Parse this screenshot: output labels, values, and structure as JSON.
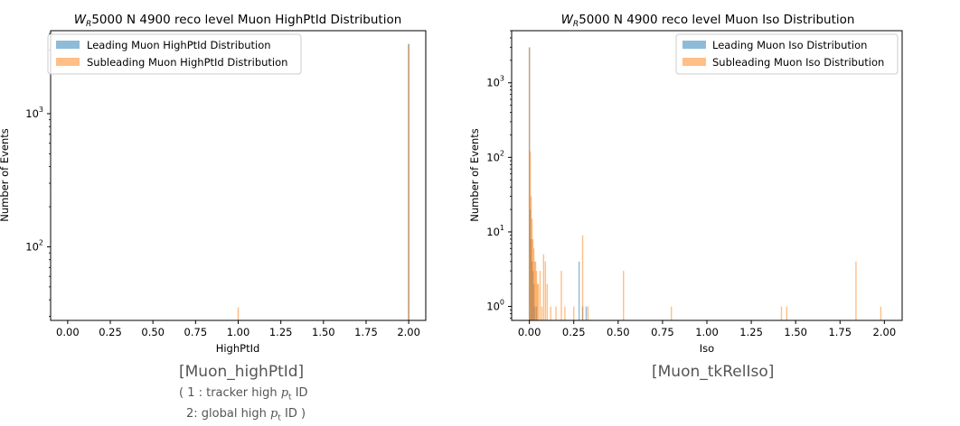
{
  "colors": {
    "leading": "#1f77b4",
    "subleading": "#ff7f0e"
  },
  "chart_data": [
    {
      "type": "histogram",
      "title_pre": "W",
      "title_sub": "R",
      "title_post": "5000 N 4900 reco level Muon HighPtId Distribution",
      "xlabel": "HighPtId",
      "ylabel": "Number of Events",
      "xlim": [
        -0.1,
        2.1
      ],
      "ylim": [
        28,
        4200
      ],
      "yscale": "log",
      "xticks": [
        "0.00",
        "0.25",
        "0.50",
        "0.75",
        "1.00",
        "1.25",
        "1.50",
        "1.75",
        "2.00"
      ],
      "yticks": [
        {
          "base": "10",
          "exp": "2",
          "value": 100
        },
        {
          "base": "10",
          "exp": "3",
          "value": 1000
        }
      ],
      "legend_position": "upper left",
      "series": [
        {
          "name": "Leading Muon HighPtId Distribution",
          "x": [
            2.0
          ],
          "y": [
            3350
          ]
        },
        {
          "name": "Subleading Muon HighPtId Distribution",
          "x": [
            1.0,
            2.0
          ],
          "y": [
            35,
            3300
          ]
        }
      ]
    },
    {
      "type": "histogram",
      "title_pre": "W",
      "title_sub": "R",
      "title_post": "5000 N 4900 reco level Muon Iso Distribution",
      "xlabel": "Iso",
      "ylabel": "Number of Events",
      "xlim": [
        -0.1,
        2.1
      ],
      "ylim": [
        0.65,
        5000
      ],
      "yscale": "log",
      "xticks": [
        "0.00",
        "0.25",
        "0.50",
        "0.75",
        "1.00",
        "1.25",
        "1.50",
        "1.75",
        "2.00"
      ],
      "yticks": [
        {
          "base": "10",
          "exp": "0",
          "value": 1
        },
        {
          "base": "10",
          "exp": "1",
          "value": 10
        },
        {
          "base": "10",
          "exp": "2",
          "value": 100
        },
        {
          "base": "10",
          "exp": "3",
          "value": 1000
        }
      ],
      "legend_position": "upper right",
      "series": [
        {
          "name": "Leading Muon Iso Distribution",
          "x": [
            0.0,
            0.005,
            0.01,
            0.015,
            0.02,
            0.025,
            0.03,
            0.04,
            0.28,
            0.3,
            0.32
          ],
          "y": [
            3000,
            20,
            8,
            4,
            3,
            2,
            1,
            1,
            4,
            1,
            1
          ]
        },
        {
          "name": "Subleading Muon Iso Distribution",
          "x": [
            0.0,
            0.005,
            0.01,
            0.015,
            0.02,
            0.025,
            0.03,
            0.035,
            0.04,
            0.045,
            0.05,
            0.06,
            0.07,
            0.08,
            0.09,
            0.1,
            0.12,
            0.15,
            0.18,
            0.2,
            0.25,
            0.3,
            0.33,
            0.53,
            0.8,
            1.42,
            1.45,
            1.84,
            1.98
          ],
          "y": [
            2900,
            120,
            30,
            15,
            8,
            6,
            4,
            4,
            3,
            2,
            2,
            3,
            1,
            5,
            4,
            2,
            1,
            1,
            3,
            1,
            1,
            9,
            1,
            3,
            1,
            1,
            1,
            4,
            1
          ]
        }
      ]
    }
  ],
  "captions": {
    "left_main": "[Muon_highPtId]",
    "left_line1_pre": "( 1 : tracker high ",
    "left_line1_sym": "p",
    "left_line1_sub": "t",
    "left_line1_post": " ID",
    "left_line2_pre": "2:  global high ",
    "left_line2_sym": "p",
    "left_line2_sub": "t",
    "left_line2_post": " ID )",
    "right_main": "[Muon_tkRelIso]"
  }
}
